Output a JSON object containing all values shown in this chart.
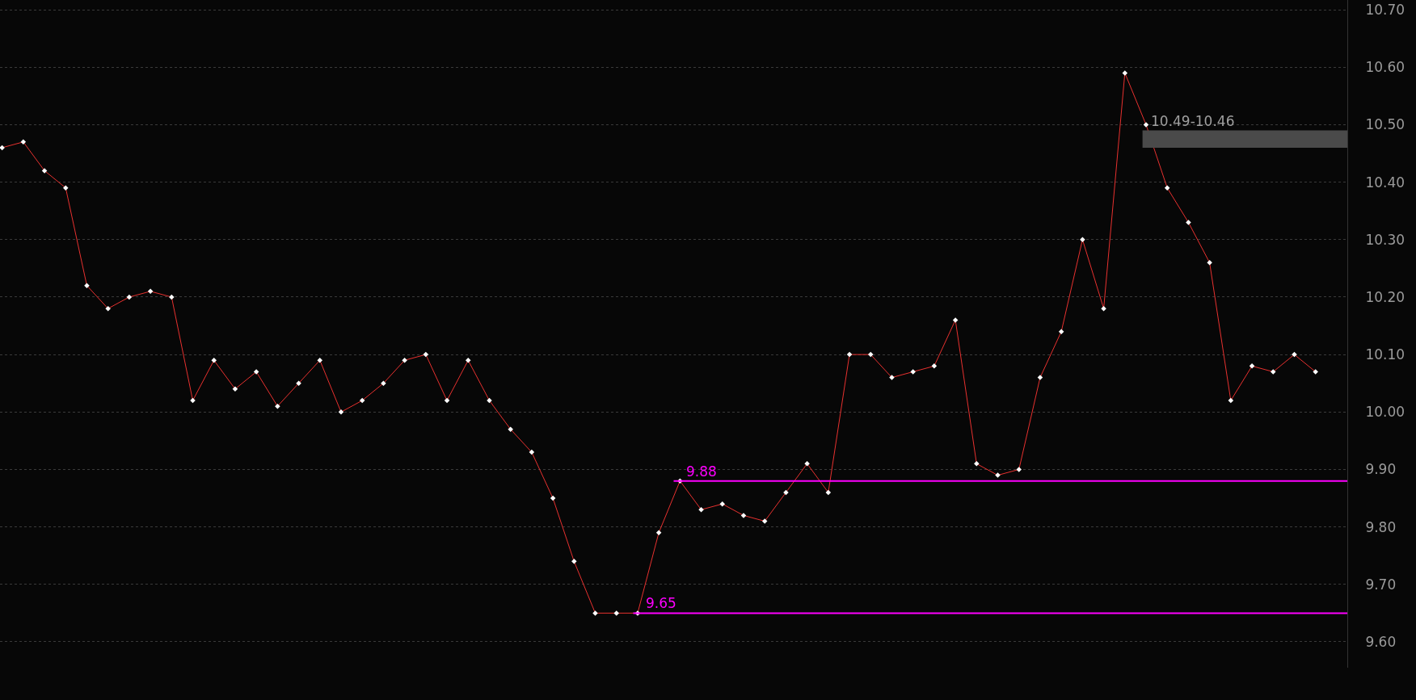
{
  "chart_data": {
    "type": "line",
    "categories": [
      null,
      null,
      null,
      null,
      null,
      null,
      null,
      null,
      null,
      null,
      null,
      null,
      null,
      null,
      null,
      null,
      null,
      null,
      null,
      null,
      null,
      null,
      null,
      null,
      null,
      null,
      null,
      null,
      null,
      null,
      null,
      null,
      null,
      null,
      null,
      null,
      null,
      null,
      null,
      null,
      null,
      null,
      null,
      null,
      null,
      null,
      null,
      null,
      null,
      null,
      null,
      null,
      null,
      null,
      null,
      null,
      null,
      null,
      null,
      null,
      null,
      null,
      null
    ],
    "series": [
      {
        "color": "#e8312f",
        "values": [
          10.46,
          10.47,
          10.42,
          10.39,
          10.22,
          10.18,
          10.2,
          10.21,
          10.2,
          10.02,
          10.09,
          10.04,
          10.07,
          10.01,
          10.05,
          10.09,
          10.0,
          10.02,
          10.05,
          10.09,
          10.1,
          10.02,
          10.09,
          10.02,
          9.97,
          9.93,
          9.85,
          9.74,
          9.65,
          9.65,
          9.65,
          9.79,
          9.88,
          9.83,
          9.84,
          9.82,
          9.81,
          9.86,
          9.91,
          9.86,
          10.1,
          10.1,
          10.06,
          10.07,
          10.08,
          10.16,
          9.91,
          9.89,
          9.9,
          10.06,
          10.14,
          10.3,
          10.18,
          10.59,
          10.5,
          10.39,
          10.33,
          10.26,
          10.02,
          10.08,
          10.07,
          10.1,
          10.07
        ]
      }
    ],
    "ylim": [
      9.555,
      10.717
    ],
    "yticks": [
      {
        "value": 9.6,
        "label": "9.60"
      },
      {
        "value": 9.7,
        "label": "9.70"
      },
      {
        "value": 9.8,
        "label": "9.80"
      },
      {
        "value": 9.9,
        "label": "9.90"
      },
      {
        "value": 10.0,
        "label": "10.00"
      },
      {
        "value": 10.1,
        "label": "10.10"
      },
      {
        "value": 10.2,
        "label": "10.20"
      },
      {
        "value": 10.3,
        "label": "10.30"
      },
      {
        "value": 10.4,
        "label": "10.40"
      },
      {
        "value": 10.5,
        "label": "10.50"
      },
      {
        "value": 10.6,
        "label": "10.60"
      },
      {
        "value": 10.7,
        "label": "10.70"
      }
    ],
    "tick_labels": "y",
    "grid": "y",
    "marker": "diamond",
    "line_style": "solid",
    "ref_lines": [
      {
        "axis": "y",
        "value": 9.88,
        "label": "9.88",
        "color": "#ff00ff"
      },
      {
        "axis": "y",
        "value": 9.65,
        "label": "9.65",
        "color": "#ff00ff"
      }
    ],
    "bands": [
      {
        "axis": "y",
        "from": 10.46,
        "to": 10.49,
        "label": "10.49-10.46",
        "color": "#4a4a4a"
      }
    ]
  }
}
